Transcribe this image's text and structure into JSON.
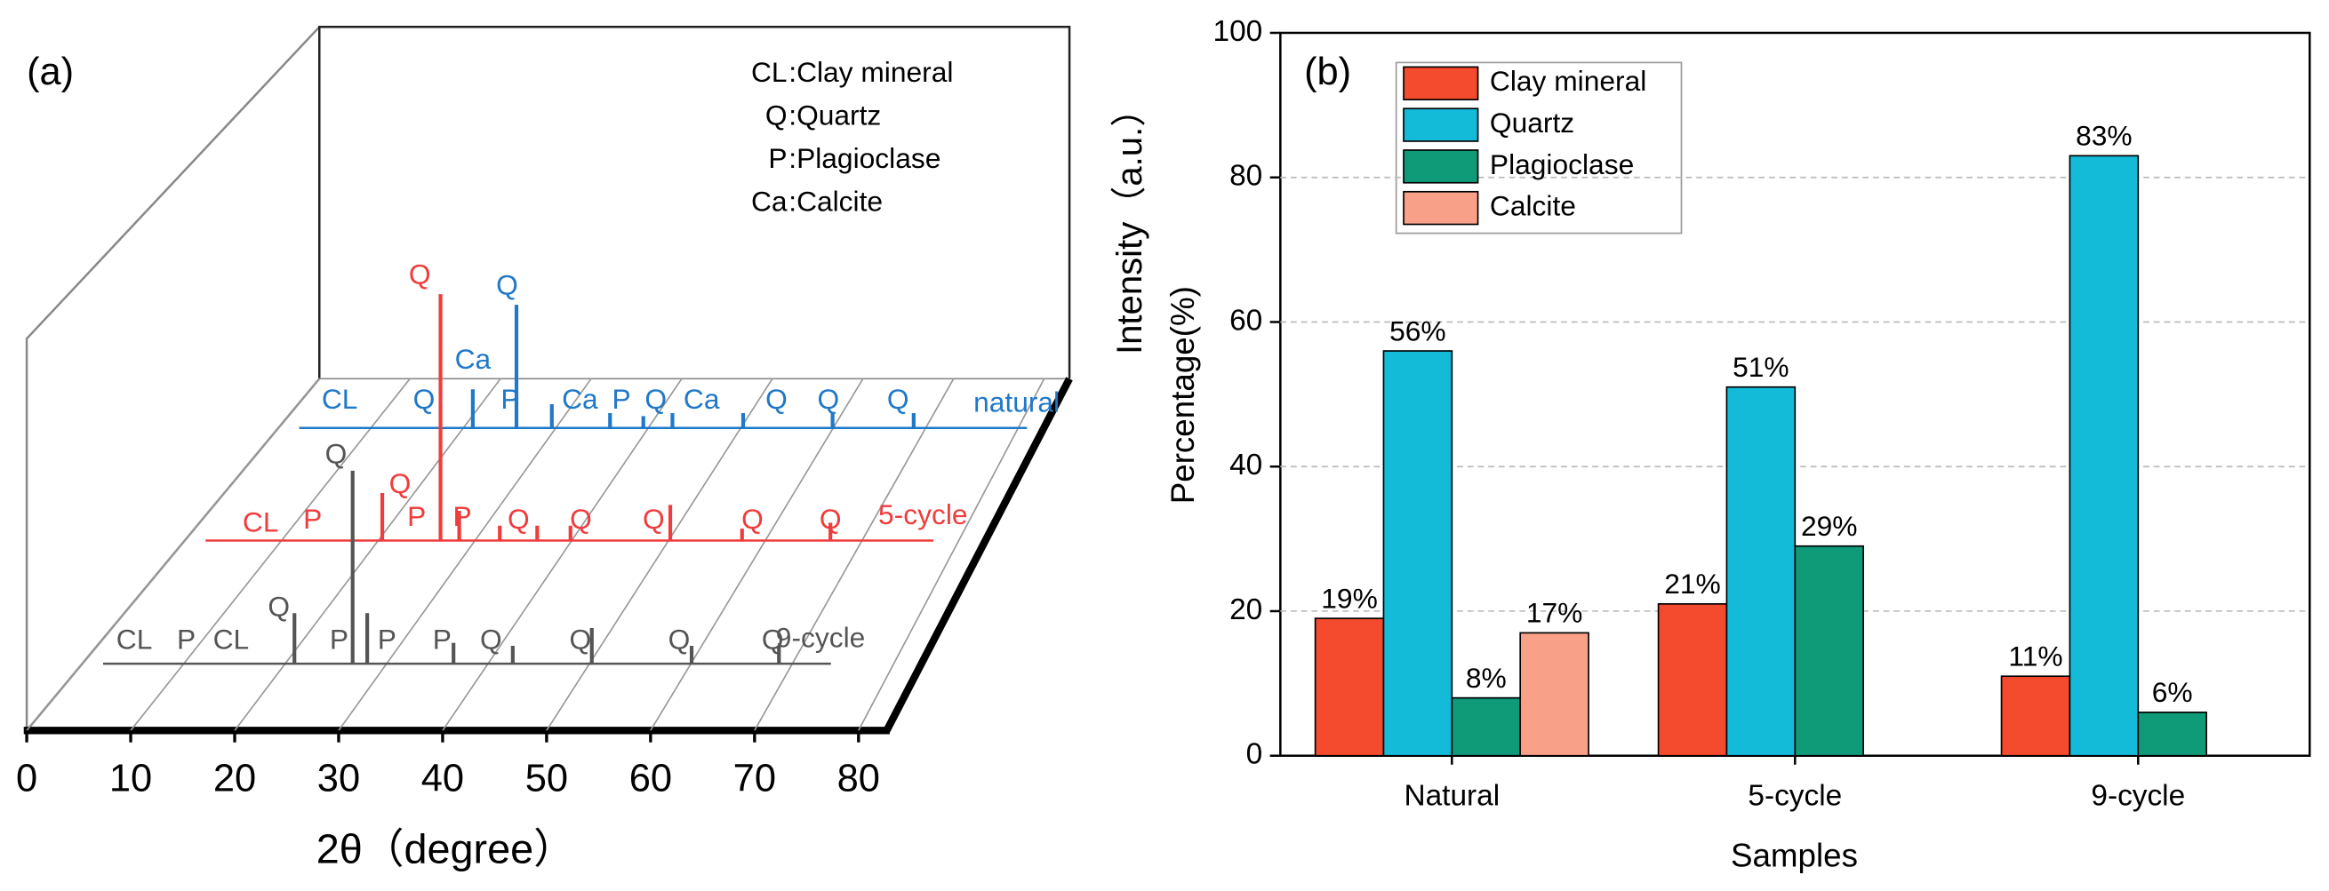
{
  "chart_data": [
    {
      "type": "xrd-3d",
      "panel_label": "(a)",
      "xlabel": "2θ（degree）",
      "ylabel": "Intensity（a.u.）",
      "xlim": [
        0,
        80
      ],
      "xticks": [
        0,
        10,
        20,
        30,
        40,
        50,
        60,
        70,
        80
      ],
      "ylim": [
        0,
        100
      ],
      "legend": [
        {
          "symbol": "CL",
          "text": ":Clay mineral"
        },
        {
          "symbol": "Q",
          "text": ":Quartz"
        },
        {
          "symbol": "P",
          "text": ":Plagioclase"
        },
        {
          "symbol": "Ca",
          "text": ":Calcite"
        }
      ],
      "series": [
        {
          "name": "natural",
          "color": "#1f78c8",
          "x": [
            18.7,
            22.9,
            26.3,
            31.9,
            35.1,
            37.9,
            44.7,
            53.3,
            61.1
          ],
          "values": [
            13,
            41.5,
            8,
            5,
            4,
            5,
            5,
            5,
            5
          ],
          "annotations": [
            {
              "text": "CL",
              "x": 5.9,
              "y": 9
            },
            {
              "text": "Q",
              "x": 14,
              "y": 9
            },
            {
              "text": "Ca",
              "x": 18.7,
              "y": 22.5
            },
            {
              "text": "Q",
              "x": 22,
              "y": 47.5
            },
            {
              "text": "P",
              "x": 22.3,
              "y": 9
            },
            {
              "text": "Ca",
              "x": 29,
              "y": 9
            },
            {
              "text": "P",
              "x": 33,
              "y": 9
            },
            {
              "text": "Q",
              "x": 36.3,
              "y": 9
            },
            {
              "text": "Ca",
              "x": 40.7,
              "y": 9
            },
            {
              "text": "Q",
              "x": 47.9,
              "y": 9
            },
            {
              "text": "Q",
              "x": 52.9,
              "y": 9
            },
            {
              "text": "Q",
              "x": 59.6,
              "y": 9
            }
          ]
        },
        {
          "name": "5-cycle",
          "color": "#f03c3c",
          "x": [
            19,
            24.6,
            26.4,
            30.3,
            33.9,
            37.1,
            46.7,
            53.6,
            62.1
          ],
          "values": [
            16,
            83,
            10,
            5,
            5,
            5,
            12,
            4,
            6
          ],
          "annotations": [
            {
              "text": "CL",
              "x": 7.3,
              "y": 5.5
            },
            {
              "text": "P",
              "x": 12.3,
              "y": 6.5
            },
            {
              "text": "Q",
              "x": 20.7,
              "y": 18.5
            },
            {
              "text": "Q",
              "x": 22.6,
              "y": 89
            },
            {
              "text": "P",
              "x": 22.3,
              "y": 7.5
            },
            {
              "text": "P",
              "x": 26.7,
              "y": 7.5
            },
            {
              "text": "Q",
              "x": 32.1,
              "y": 6.5
            },
            {
              "text": "Q",
              "x": 38.1,
              "y": 6.5
            },
            {
              "text": "Q",
              "x": 45.1,
              "y": 6.5
            },
            {
              "text": "Q",
              "x": 54.6,
              "y": 6.5
            },
            {
              "text": "Q",
              "x": 62.1,
              "y": 6.5
            }
          ]
        },
        {
          "name": "9-cycle",
          "color": "#555555",
          "x": [
            20.4,
            26,
            27.4,
            35.7,
            41.4,
            49,
            58.6,
            67
          ],
          "values": [
            17,
            65,
            17,
            7,
            6,
            12,
            6,
            6
          ],
          "annotations": [
            {
              "text": "CL",
              "x": 5,
              "y": 7.5
            },
            {
              "text": "P",
              "x": 10,
              "y": 7.5
            },
            {
              "text": "CL",
              "x": 14.3,
              "y": 7.5
            },
            {
              "text": "Q",
              "x": 18.9,
              "y": 18.5
            },
            {
              "text": "Q",
              "x": 24.4,
              "y": 70
            },
            {
              "text": "P",
              "x": 24.7,
              "y": 7.5
            },
            {
              "text": "P",
              "x": 29.3,
              "y": 7.5
            },
            {
              "text": "P",
              "x": 34.6,
              "y": 7.5
            },
            {
              "text": "Q",
              "x": 39.3,
              "y": 7.5
            },
            {
              "text": "Q",
              "x": 47.9,
              "y": 7.5
            },
            {
              "text": "Q",
              "x": 57.4,
              "y": 7.5
            },
            {
              "text": "Q",
              "x": 66.4,
              "y": 7.5
            }
          ]
        }
      ]
    },
    {
      "type": "bar",
      "panel_label": "(b)",
      "xlabel": "Samples",
      "ylabel": "Percentage(%)",
      "categories": [
        "Natural",
        "5-cycle",
        "9-cycle"
      ],
      "ylim": [
        0,
        100
      ],
      "yticks": [
        0,
        20,
        40,
        60,
        80,
        100
      ],
      "grid": true,
      "legend_position": "upper left",
      "series": [
        {
          "name": "Clay mineral",
          "color": "#f44a2e",
          "values": [
            19,
            21,
            11
          ],
          "value_labels": [
            "19%",
            "21%",
            "11%"
          ]
        },
        {
          "name": "Quartz",
          "color": "#14bbd8",
          "values": [
            56,
            51,
            83
          ],
          "value_labels": [
            "56%",
            "51%",
            "83%"
          ]
        },
        {
          "name": "Plagioclase",
          "color": "#0f9a78",
          "values": [
            8,
            29,
            6
          ],
          "value_labels": [
            "8%",
            "29%",
            "6%"
          ]
        },
        {
          "name": "Calcite",
          "color": "#f9a088",
          "values": [
            17,
            null,
            null
          ],
          "value_labels": [
            "17%",
            null,
            null
          ]
        }
      ]
    }
  ]
}
